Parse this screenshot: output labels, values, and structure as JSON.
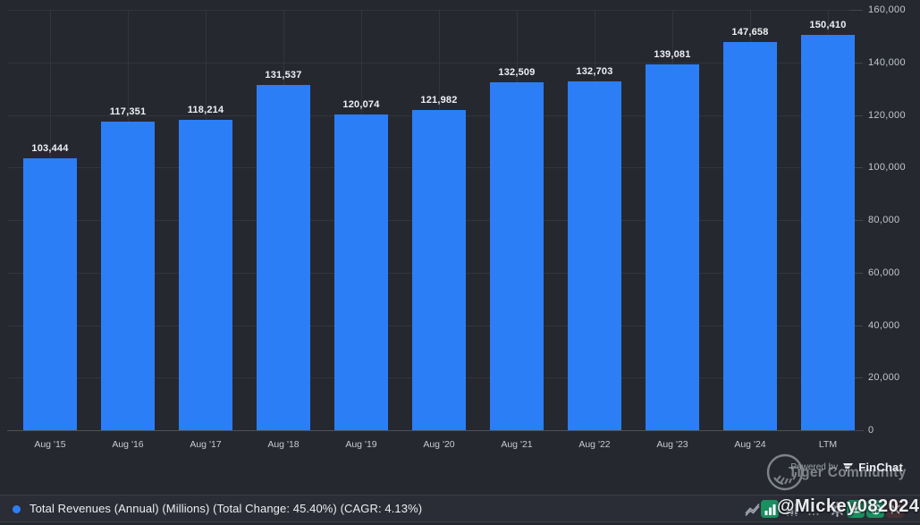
{
  "chart_data": {
    "type": "bar",
    "title": "Total Revenues (Annual) bar chart",
    "categories": [
      "Aug '15",
      "Aug '16",
      "Aug '17",
      "Aug '18",
      "Aug '19",
      "Aug '20",
      "Aug '21",
      "Aug '22",
      "Aug '23",
      "Aug '24",
      "LTM"
    ],
    "values": [
      103444,
      117351,
      118214,
      131537,
      120074,
      121982,
      132509,
      132703,
      139081,
      147658,
      150410
    ],
    "value_labels": [
      "103,444",
      "117,351",
      "118,214",
      "131,537",
      "120,074",
      "121,982",
      "132,509",
      "132,703",
      "139,081",
      "147,658",
      "150,410"
    ],
    "xlabel": "",
    "ylabel": "",
    "ylim": [
      0,
      160000
    ],
    "y_ticks": [
      0,
      20000,
      40000,
      60000,
      80000,
      100000,
      120000,
      140000,
      160000
    ],
    "y_tick_labels": [
      "0",
      "20,000",
      "40,000",
      "60,000",
      "80,000",
      "100,000",
      "120,000",
      "140,000",
      "160,000"
    ],
    "y_axis_side": "right",
    "grid": "horizontal gridlines at each y tick, vertical gridline at each bar center",
    "legend_position": "bottom-left",
    "bar_color": "#2c7ef7",
    "background_color": "#26282f"
  },
  "legend": {
    "label": "Total Revenues (Annual) (Millions) (Total Change: 45.40%) (CAGR: 4.13%)"
  },
  "watermarks": {
    "handle": "@Mickey082024",
    "community": "Tiger Community"
  },
  "powered_by": {
    "prefix": "Powered by",
    "brand": "FinChat"
  },
  "toolbar": {
    "icons": [
      {
        "name": "line-chart-icon",
        "active": false
      },
      {
        "name": "bar-chart-button",
        "active": true
      },
      {
        "name": "stacked-bar-icon",
        "active": false
      },
      {
        "name": "more-options-icon",
        "active": false
      },
      {
        "name": "settings-gear-icon",
        "active": false
      },
      {
        "name": "download-button",
        "active": true
      },
      {
        "name": "globe-button",
        "active": true
      },
      {
        "name": "close-button",
        "active": false
      }
    ]
  },
  "colors": {
    "accent_blue": "#2c7ef7",
    "button_green": "#1a8f60",
    "button_red_bg": "#463136",
    "gridline": "#32353e",
    "text_primary": "#eef0f4",
    "text_secondary": "#c2c7cf"
  }
}
